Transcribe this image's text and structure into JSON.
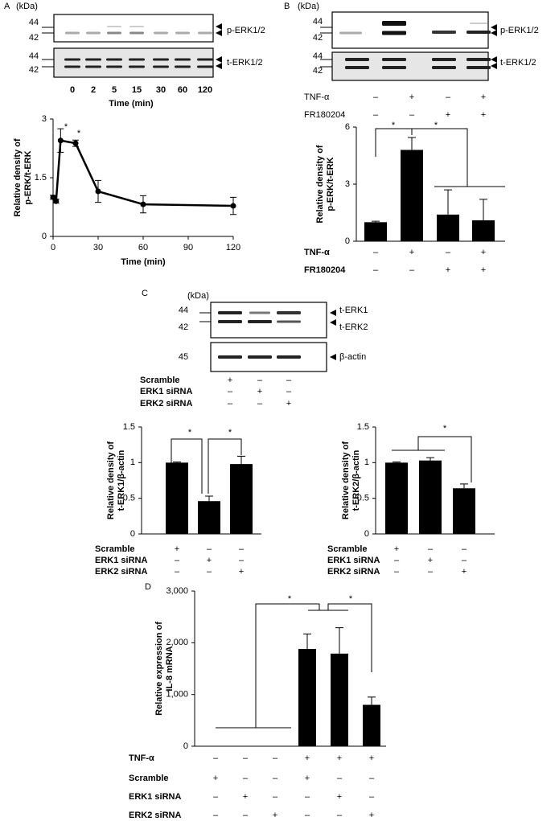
{
  "panel_labels": [
    "A",
    "B",
    "C",
    "D"
  ],
  "blots": [
    {
      "kda": "(kDa)",
      "rows": [
        {
          "markers": [
            "44",
            "42"
          ],
          "labels": [
            "p-ERK1/2"
          ]
        },
        {
          "markers": [
            "44",
            "42"
          ],
          "labels": [
            "t-ERK1/2"
          ]
        }
      ],
      "lanes": [
        "0",
        "2",
        "5",
        "15",
        "30",
        "60",
        "120"
      ],
      "lanes_title": "Time (min)"
    },
    {
      "kda": "(kDa)",
      "rows": [
        {
          "markers": [
            "44",
            "42"
          ],
          "labels": [
            "p-ERK1/2"
          ]
        },
        {
          "markers": [
            "44",
            "42"
          ],
          "labels": [
            "t-ERK1/2"
          ]
        }
      ],
      "conditions": [
        {
          "label": "TNF-α",
          "marks": [
            "–",
            "+",
            "–",
            "+"
          ]
        },
        {
          "label": "FR180204",
          "marks": [
            "–",
            "–",
            "+",
            "+"
          ]
        }
      ]
    },
    {
      "kda": "(kDa)",
      "rows": [
        {
          "markers": [
            "44",
            "42"
          ],
          "labels": [
            "t-ERK1",
            "t-ERK2"
          ]
        },
        {
          "markers": [
            "45"
          ],
          "labels": [
            "β-actin"
          ]
        }
      ],
      "conditions": [
        {
          "label": "Scramble",
          "marks": [
            "+",
            "–",
            "–"
          ]
        },
        {
          "label": "ERK1 siRNA",
          "marks": [
            "–",
            "+",
            "–"
          ]
        },
        {
          "label": "ERK2 siRNA",
          "marks": [
            "–",
            "–",
            "+"
          ]
        }
      ]
    }
  ],
  "chart_data": [
    {
      "type": "line",
      "x": [
        0,
        2,
        5,
        15,
        30,
        60,
        120
      ],
      "values": [
        1.0,
        0.9,
        2.45,
        2.38,
        1.15,
        0.82,
        0.78
      ],
      "errors": [
        0.05,
        0.05,
        0.3,
        0.08,
        0.28,
        0.22,
        0.22
      ],
      "color": "#000000",
      "xlim": [
        0,
        120
      ],
      "xticks": [
        0,
        30,
        60,
        90,
        120
      ],
      "ylim": [
        0,
        3
      ],
      "yticks": [
        0,
        1.5,
        3
      ],
      "xlabel": "Time (min)",
      "ylabel": [
        "Relative density of",
        "p-ERK/t-ERK"
      ],
      "annotations": [
        "*",
        "*"
      ]
    },
    {
      "type": "bar",
      "categories": [
        null,
        null,
        null,
        null
      ],
      "values": [
        1.0,
        4.8,
        1.4,
        1.1
      ],
      "errors": [
        0.05,
        0.65,
        1.3,
        1.1
      ],
      "color": "#000000",
      "ylim": [
        0,
        6
      ],
      "yticks": [
        0,
        3,
        6
      ],
      "ylabel": [
        "Relative density of",
        "p-ERK/t-ERK"
      ],
      "annotations": [
        "*",
        "*"
      ],
      "conditions": [
        {
          "label": "TNF-α",
          "marks": [
            "–",
            "+",
            "–",
            "+"
          ]
        },
        {
          "label": "FR180204",
          "marks": [
            "–",
            "–",
            "+",
            "+"
          ]
        }
      ]
    },
    {
      "type": "bar",
      "categories": [
        null,
        null,
        null
      ],
      "values": [
        1.0,
        0.46,
        0.98
      ],
      "errors": [
        0.01,
        0.07,
        0.11
      ],
      "color": "#000000",
      "ylim": [
        0,
        1.5
      ],
      "yticks": [
        0,
        0.5,
        1,
        1.5
      ],
      "ylabel": [
        "Relative density of",
        "t-ERK1/β-actin"
      ],
      "annotations": [
        "*",
        "*"
      ],
      "conditions": [
        {
          "label": "Scramble",
          "marks": [
            "+",
            "–",
            "–"
          ]
        },
        {
          "label": "ERK1 siRNA",
          "marks": [
            "–",
            "+",
            "–"
          ]
        },
        {
          "label": "ERK2 siRNA",
          "marks": [
            "–",
            "–",
            "+"
          ]
        }
      ]
    },
    {
      "type": "bar",
      "categories": [
        null,
        null,
        null
      ],
      "values": [
        1.0,
        1.03,
        0.64
      ],
      "errors": [
        0.01,
        0.04,
        0.06
      ],
      "color": "#000000",
      "ylim": [
        0,
        1.5
      ],
      "yticks": [
        0,
        0.5,
        1,
        1.5
      ],
      "ylabel": [
        "Relative density of",
        "t-ERK2/β-actin"
      ],
      "annotations": [
        "*"
      ],
      "conditions": [
        {
          "label": "Scramble",
          "marks": [
            "+",
            "–",
            "–"
          ]
        },
        {
          "label": "ERK1 siRNA",
          "marks": [
            "–",
            "+",
            "–"
          ]
        },
        {
          "label": "ERK2 siRNA",
          "marks": [
            "–",
            "–",
            "+"
          ]
        }
      ]
    },
    {
      "type": "bar",
      "categories": [
        null,
        null,
        null,
        null,
        null,
        null
      ],
      "values": [
        0,
        0,
        0,
        1880,
        1790,
        800
      ],
      "errors": [
        0,
        0,
        0,
        290,
        500,
        150
      ],
      "color": "#000000",
      "ylim": [
        0,
        3000
      ],
      "yticks": [
        0,
        {
          "value": 1000,
          "label": "1,000"
        },
        {
          "value": 2000,
          "label": "2,000"
        },
        {
          "value": 3000,
          "label": "3,000"
        }
      ],
      "ylabel": [
        "Relative expression of",
        "IL-8 mRNA"
      ],
      "annotations": [
        "*",
        "*"
      ],
      "conditions": [
        {
          "label": "TNF-α",
          "marks": [
            "–",
            "–",
            "–",
            "+",
            "+",
            "+"
          ]
        },
        {
          "label": "Scramble",
          "marks": [
            "+",
            "–",
            "–",
            "+",
            "–",
            "–"
          ]
        },
        {
          "label": "ERK1 siRNA",
          "marks": [
            "–",
            "+",
            "–",
            "–",
            "+",
            "–"
          ]
        },
        {
          "label": "ERK2 siRNA",
          "marks": [
            "–",
            "–",
            "+",
            "–",
            "–",
            "+"
          ]
        }
      ]
    }
  ]
}
